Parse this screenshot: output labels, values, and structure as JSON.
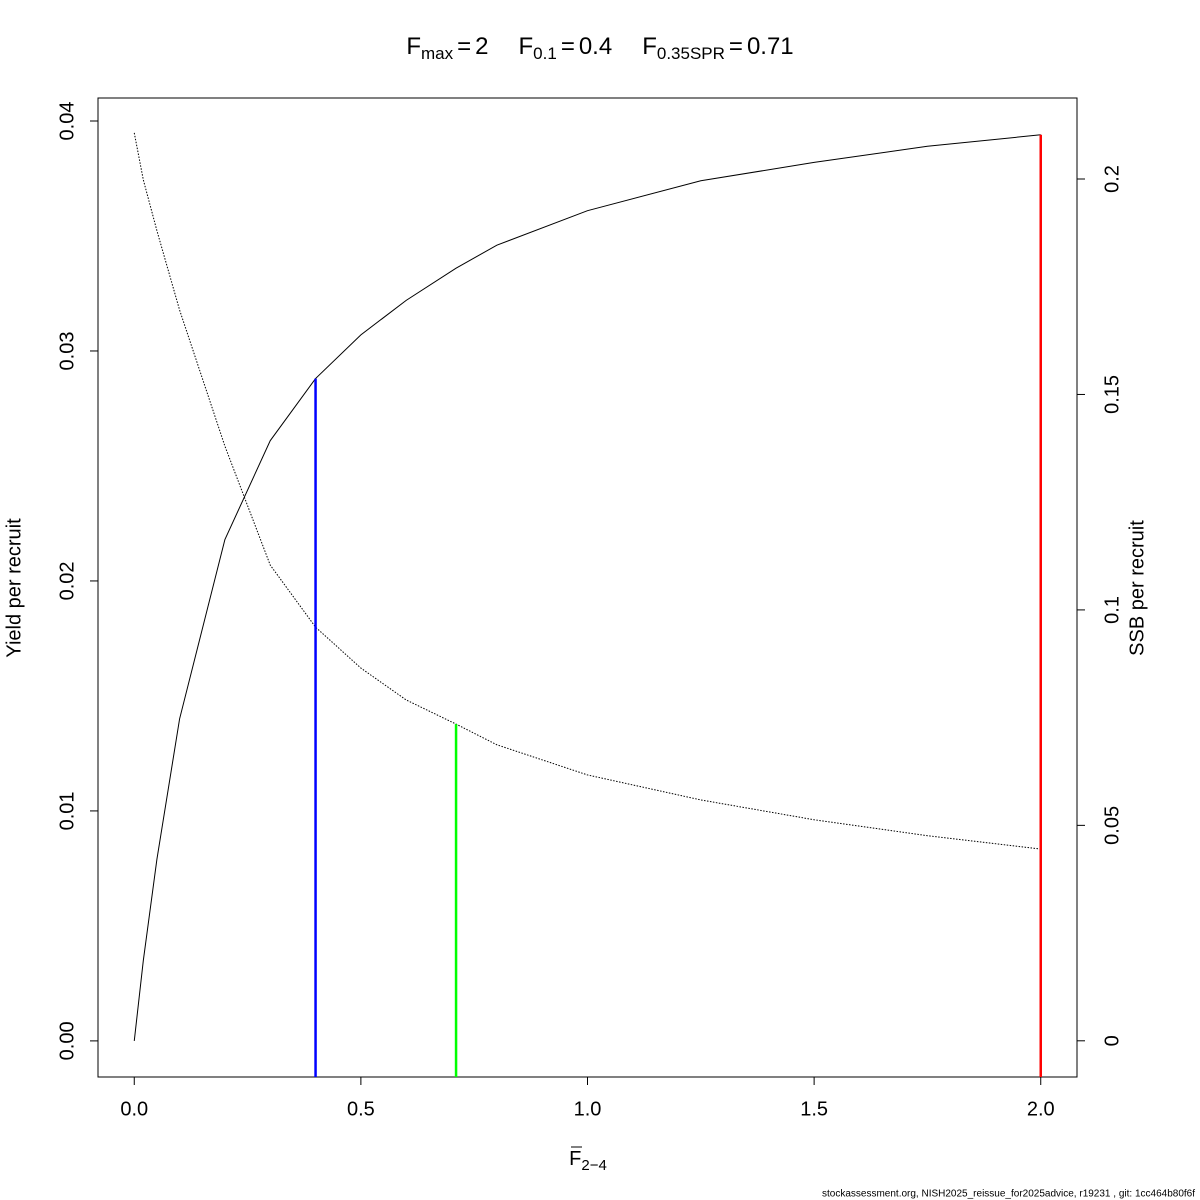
{
  "chart_data": {
    "type": "line",
    "title": [
      {
        "symbol": "F",
        "sub": "max",
        "sign": "=",
        "value": 2
      },
      {
        "symbol": "F",
        "sub": "0.1",
        "sign": "=",
        "value": 0.4
      },
      {
        "symbol": "F",
        "sub": "0.35SPR",
        "sign": "=",
        "value": 0.71
      }
    ],
    "reference_lines": [
      {
        "title_index": 1,
        "y": 0.0288,
        "axis": "y",
        "color": "#0000ff"
      },
      {
        "title_index": 2,
        "y": 0.0735,
        "axis": "y2",
        "color": "#00ff00"
      },
      {
        "title_index": 0,
        "y": 0.0394,
        "axis": "y",
        "color": "#ff0000"
      }
    ],
    "xlabel": {
      "symbol": "F",
      "sub": "2−4"
    },
    "ylabel": "Yield per recruit",
    "y2label": "SSB per recruit",
    "footer": "stockassessment.org, NISH2025_reissue_for2025advice, r19231 , git: 1cc464b80f6f",
    "x": [
      0,
      0.02,
      0.05,
      0.1,
      0.2,
      0.3,
      0.4,
      0.5,
      0.6,
      0.71,
      0.8,
      1.0,
      1.25,
      1.5,
      1.75,
      2.0
    ],
    "series": [
      {
        "color": "#000000",
        "style": "solid",
        "axis": "y",
        "values": [
          0,
          0.0035,
          0.0079,
          0.014,
          0.0218,
          0.0261,
          0.0288,
          0.0307,
          0.0322,
          0.0336,
          0.0346,
          0.0361,
          0.0374,
          0.0382,
          0.0389,
          0.0394
        ]
      },
      {
        "color": "#000000",
        "style": "dotted",
        "axis": "y2",
        "values": [
          0.2107,
          0.1998,
          0.188,
          0.1696,
          0.138,
          0.1104,
          0.096,
          0.0865,
          0.0791,
          0.0735,
          0.0687,
          0.0617,
          0.0559,
          0.0513,
          0.0476,
          0.0445
        ]
      }
    ],
    "xlim": [
      -0.08,
      2.08
    ],
    "xticks": [
      {
        "value": 0,
        "label": "0.0"
      },
      0.5,
      {
        "value": 1,
        "label": "1.0"
      },
      1.5,
      {
        "value": 2,
        "label": "2.0"
      }
    ],
    "ylim": [
      -0.00157,
      0.041
    ],
    "yticks": [
      {
        "value": 0,
        "label": "0.00"
      },
      {
        "value": 0.01,
        "label": "0.01"
      },
      {
        "value": 0.02,
        "label": "0.02"
      },
      {
        "value": 0.03,
        "label": "0.03"
      },
      {
        "value": 0.04,
        "label": "0.04"
      }
    ],
    "y2lim": [
      -0.0084,
      0.2188
    ],
    "y2ticks": [
      0,
      0.05,
      0.1,
      0.15,
      0.2
    ],
    "grid": false
  }
}
